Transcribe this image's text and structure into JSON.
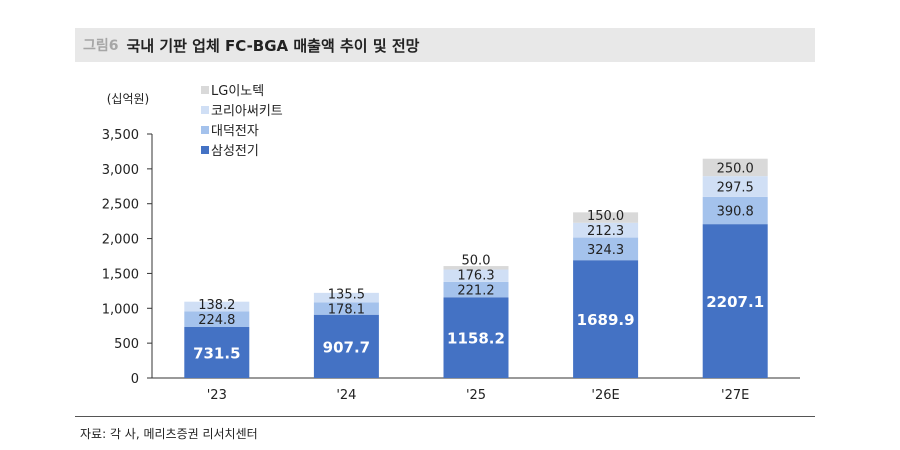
{
  "header": {
    "figure_label": "그림6",
    "title": "국내 기판 업체 FC-BGA 매출액 추이 및 전망"
  },
  "source": "자료: 각 사, 메리츠증권 리서치센터",
  "chart_data": {
    "type": "bar",
    "stacked": true,
    "ylabel": "(십억원)",
    "ylim": [
      0,
      3500
    ],
    "yticks": [
      "0",
      "500",
      "1,000",
      "1,500",
      "2,000",
      "2,500",
      "3,000",
      "3,500"
    ],
    "categories": [
      "'23",
      "'24",
      "'25",
      "'26E",
      "'27E"
    ],
    "legend_position": "top-left",
    "series": [
      {
        "name": "삼성전기",
        "color": "#4472c4",
        "values": [
          731.5,
          907.7,
          1158.2,
          1689.9,
          2207.1
        ]
      },
      {
        "name": "대덕전자",
        "color": "#a4c2ec",
        "values": [
          224.8,
          178.1,
          221.2,
          324.3,
          390.8
        ]
      },
      {
        "name": "코리아써키트",
        "color": "#d0dff5",
        "values": [
          138.2,
          135.5,
          176.3,
          212.3,
          297.5
        ]
      },
      {
        "name": "LG이노텍",
        "color": "#d9d9d9",
        "values": [
          null,
          null,
          50.0,
          150.0,
          250.0
        ]
      }
    ],
    "grid": false
  }
}
